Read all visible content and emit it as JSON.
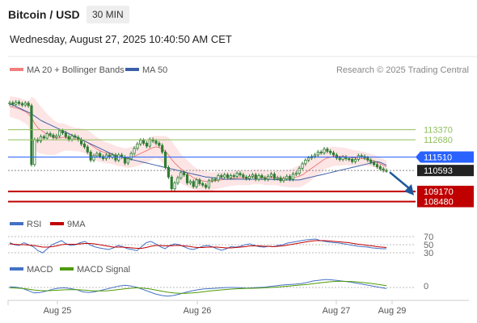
{
  "header": {
    "title": "Bitcoin / USD",
    "timeframe": "30 MIN",
    "datetime": "Wednesday, August 27, 2025 10:40:50 AM CET"
  },
  "colors": {
    "candle": "#2e7d32",
    "ma20": "#ef7f7f",
    "bollinger_fill": "#fde1e1",
    "ma50": "#3b5fa8",
    "support": "#c00000",
    "resistance": "#8fbf5a",
    "current_line": "#2962ff",
    "last_price_box": "#222222",
    "rsi": "#4472c4",
    "rsi_ma": "#c00000",
    "macd": "#4472c4",
    "macd_signal": "#4e9a06",
    "arrow": "#1e5799"
  },
  "chart_data": [
    {
      "type": "candlestick",
      "title": "Bitcoin / USD",
      "legend": [
        "MA 20 + Bollinger Bands",
        "MA 50"
      ],
      "credit": "Research © 2025 Trading Central",
      "x_ticks": [
        "Aug 25",
        "Aug 26",
        "Aug 27",
        "Aug 29"
      ],
      "ylim": [
        107800,
        116700
      ],
      "levels": [
        {
          "label": "113370",
          "value": 113370,
          "kind": "resistance"
        },
        {
          "label": "112680",
          "value": 112680,
          "kind": "resistance"
        },
        {
          "label": "111510",
          "value": 111510,
          "kind": "pivot"
        },
        {
          "label": "110593",
          "value": 110593,
          "kind": "last"
        },
        {
          "label": "109170",
          "value": 109170,
          "kind": "support"
        },
        {
          "label": "108480",
          "value": 108480,
          "kind": "support"
        }
      ],
      "close": [
        115200,
        115100,
        115250,
        115150,
        115050,
        115180,
        115000,
        111000,
        112700,
        112600,
        112900,
        112800,
        113100,
        113000,
        112850,
        112950,
        113300,
        113150,
        112900,
        112700,
        112950,
        112850,
        112700,
        112400,
        112200,
        111850,
        111300,
        111600,
        111750,
        111550,
        111400,
        111650,
        111500,
        111650,
        111300,
        111650,
        111500,
        111100,
        111400,
        111750,
        112100,
        112400,
        112650,
        112450,
        112250,
        112700,
        112600,
        112450,
        112300,
        111850,
        110800,
        110150,
        109350,
        109750,
        110100,
        110450,
        110300,
        109750,
        109850,
        109500,
        109950,
        109700,
        109600,
        109450,
        109900,
        110000,
        109950,
        110250,
        110150,
        110300,
        110100,
        110250,
        110200,
        110400,
        110300,
        110150,
        110050,
        110200,
        110300,
        110000,
        110250,
        110100,
        110000,
        110200,
        110350,
        110050,
        110100,
        109900,
        110050,
        110200,
        110000,
        110350,
        110400,
        110750,
        111050,
        111300,
        111450,
        111550,
        111650,
        111850,
        111800,
        112050,
        111900,
        111800,
        111650,
        111450,
        111350,
        111500,
        111400,
        111350,
        111200,
        111350,
        111600,
        111550,
        111450,
        111300,
        111150,
        111000,
        110850,
        110700,
        110600,
        110593
      ],
      "ma20": [
        114950,
        114900,
        114850,
        114800,
        114700,
        114600,
        114450,
        114200,
        113800,
        113500,
        113350,
        113200,
        113050,
        112950,
        112850,
        112800,
        112800,
        112850,
        112850,
        112800,
        112750,
        112700,
        112700,
        112650,
        112600,
        112500,
        112350,
        112200,
        112050,
        111950,
        111850,
        111800,
        111750,
        111700,
        111600,
        111550,
        111500,
        111450,
        111450,
        111500,
        111550,
        111650,
        111750,
        111850,
        111950,
        112050,
        112150,
        112200,
        112150,
        112050,
        111900,
        111650,
        111350,
        111100,
        110900,
        110700,
        110550,
        110400,
        110250,
        110100,
        110000,
        109950,
        109900,
        109850,
        109850,
        109850,
        109900,
        109950,
        109950,
        110000,
        110000,
        110050,
        110050,
        110100,
        110100,
        110100,
        110100,
        110100,
        110150,
        110150,
        110150,
        110150,
        110100,
        110100,
        110100,
        110100,
        110100,
        110050,
        110050,
        110050,
        110050,
        110100,
        110150,
        110200,
        110300,
        110450,
        110600,
        110750,
        110900,
        111050,
        111200,
        111350,
        111450,
        111500,
        111550,
        111550,
        111550,
        111550,
        111550,
        111500,
        111450,
        111450,
        111450,
        111400,
        111400,
        111350,
        111300,
        111250,
        111150,
        111050,
        110950,
        110850
      ],
      "bollinger_width": [
        700,
        720,
        740,
        760,
        780,
        800,
        850,
        1400,
        1700,
        1700,
        1600,
        1500,
        1400,
        1300,
        1200,
        1100,
        1000,
        950,
        900,
        850,
        820,
        800,
        800,
        800,
        820,
        850,
        850,
        820,
        800,
        780,
        750,
        720,
        700,
        680,
        660,
        650,
        650,
        660,
        680,
        700,
        720,
        750,
        780,
        800,
        800,
        800,
        780,
        750,
        800,
        900,
        1050,
        1200,
        1250,
        1200,
        1100,
        1000,
        950,
        900,
        850,
        800,
        750,
        720,
        700,
        680,
        650,
        620,
        600,
        580,
        560,
        540,
        520,
        500,
        500,
        500,
        500,
        500,
        500,
        500,
        500,
        500,
        500,
        500,
        500,
        500,
        500,
        500,
        520,
        540,
        560,
        580,
        600,
        650,
        700,
        750,
        780,
        800,
        820,
        800,
        780,
        760,
        740,
        720,
        700,
        680,
        660,
        640,
        620,
        600,
        580,
        560,
        540,
        520,
        500,
        480,
        460,
        450,
        440,
        430,
        420,
        420,
        420,
        420
      ],
      "ma50": [
        115100,
        115050,
        114950,
        114850,
        114750,
        114650,
        114550,
        114450,
        114300,
        114150,
        114000,
        113900,
        113800,
        113700,
        113600,
        113500,
        113400,
        113300,
        113200,
        113100,
        113000,
        112900,
        112800,
        112700,
        112600,
        112500,
        112400,
        112300,
        112200,
        112100,
        112000,
        111900,
        111800,
        111700,
        111600,
        111550,
        111500,
        111450,
        111400,
        111350,
        111300,
        111250,
        111200,
        111150,
        111100,
        111050,
        111000,
        110950,
        110900,
        110850,
        110800,
        110750,
        110700,
        110650,
        110600,
        110550,
        110500,
        110450,
        110400,
        110350,
        110300,
        110250,
        110200,
        110150,
        110150,
        110100,
        110100,
        110050,
        110050,
        110000,
        110000,
        110000,
        110000,
        110000,
        110000,
        110000,
        110000,
        110000,
        110000,
        110000,
        110000,
        109990,
        109990,
        109980,
        109980,
        109970,
        109970,
        109960,
        109960,
        109950,
        109950,
        109950,
        109950,
        109950,
        110000,
        110050,
        110100,
        110150,
        110200,
        110250,
        110300,
        110350,
        110400,
        110450,
        110500,
        110550,
        110600,
        110650,
        110700,
        110750,
        110800,
        110850,
        110900,
        110950,
        111000,
        111050,
        111100,
        111150,
        111200,
        111150,
        111050,
        110950
      ]
    },
    {
      "type": "line",
      "title": "RSI",
      "legend": [
        "RSI",
        "9MA"
      ],
      "levels": [
        70,
        50,
        30
      ],
      "ylim": [
        20,
        80
      ],
      "series": [
        {
          "name": "RSI",
          "values": [
            55,
            50,
            48,
            55,
            50,
            45,
            35,
            30,
            40,
            50,
            55,
            60,
            52,
            48,
            50,
            55,
            58,
            50,
            45,
            42,
            40,
            38,
            42,
            48,
            45,
            40,
            38,
            35,
            45,
            55,
            58,
            52,
            45,
            40,
            48,
            52,
            50,
            45,
            40,
            38,
            42,
            46,
            48,
            45,
            40,
            36,
            40,
            45,
            44,
            46,
            50,
            52,
            48,
            45,
            44,
            46,
            45,
            48,
            50,
            54,
            56,
            58,
            60,
            62,
            63,
            64,
            60,
            58,
            56,
            55,
            54,
            52,
            50,
            48,
            46,
            45,
            44,
            42,
            41,
            40,
            40
          ]
        },
        {
          "name": "9MA",
          "values": [
            52,
            51,
            50,
            50,
            49,
            48,
            46,
            44,
            44,
            45,
            47,
            50,
            51,
            51,
            51,
            52,
            53,
            53,
            52,
            50,
            48,
            46,
            44,
            44,
            44,
            43,
            42,
            41,
            41,
            43,
            46,
            48,
            48,
            47,
            47,
            48,
            48,
            47,
            46,
            44,
            43,
            43,
            44,
            44,
            44,
            43,
            42,
            42,
            43,
            44,
            45,
            47,
            47,
            47,
            46,
            46,
            45,
            46,
            47,
            49,
            51,
            53,
            55,
            57,
            59,
            60,
            60,
            60,
            59,
            58,
            57,
            56,
            55,
            53,
            51,
            50,
            48,
            47,
            45,
            44,
            43
          ]
        }
      ]
    },
    {
      "type": "line",
      "title": "MACD",
      "legend": [
        "MACD",
        "MACD Signal"
      ],
      "levels": [
        0
      ],
      "series": [
        {
          "name": "MACD",
          "values": [
            20,
            10,
            -20,
            -80,
            -150,
            -140,
            -100,
            -50,
            -20,
            -10,
            -30,
            -60,
            -120,
            -140,
            -120,
            -80,
            -40,
            0,
            40,
            60,
            40,
            0,
            -60,
            -120,
            -180,
            -220,
            -240,
            -220,
            -180,
            -130,
            -90,
            -60,
            -40,
            -30,
            -20,
            -10,
            0,
            0,
            -10,
            -20,
            -10,
            0,
            10,
            30,
            50,
            70,
            80,
            90,
            110,
            140,
            180,
            200,
            220,
            210,
            190,
            170,
            150,
            120,
            90,
            60,
            30,
            0,
            -30
          ]
        },
        {
          "name": "MACD Signal",
          "values": [
            -10,
            -15,
            -25,
            -45,
            -70,
            -85,
            -90,
            -85,
            -75,
            -65,
            -60,
            -62,
            -70,
            -85,
            -95,
            -95,
            -90,
            -75,
            -55,
            -35,
            -20,
            -10,
            -20,
            -40,
            -70,
            -100,
            -130,
            -150,
            -160,
            -160,
            -150,
            -135,
            -115,
            -95,
            -80,
            -65,
            -50,
            -38,
            -30,
            -25,
            -22,
            -18,
            -10,
            0,
            12,
            25,
            40,
            55,
            70,
            85,
            105,
            125,
            145,
            160,
            170,
            170,
            165,
            155,
            140,
            120,
            100,
            75,
            50
          ]
        }
      ]
    }
  ]
}
